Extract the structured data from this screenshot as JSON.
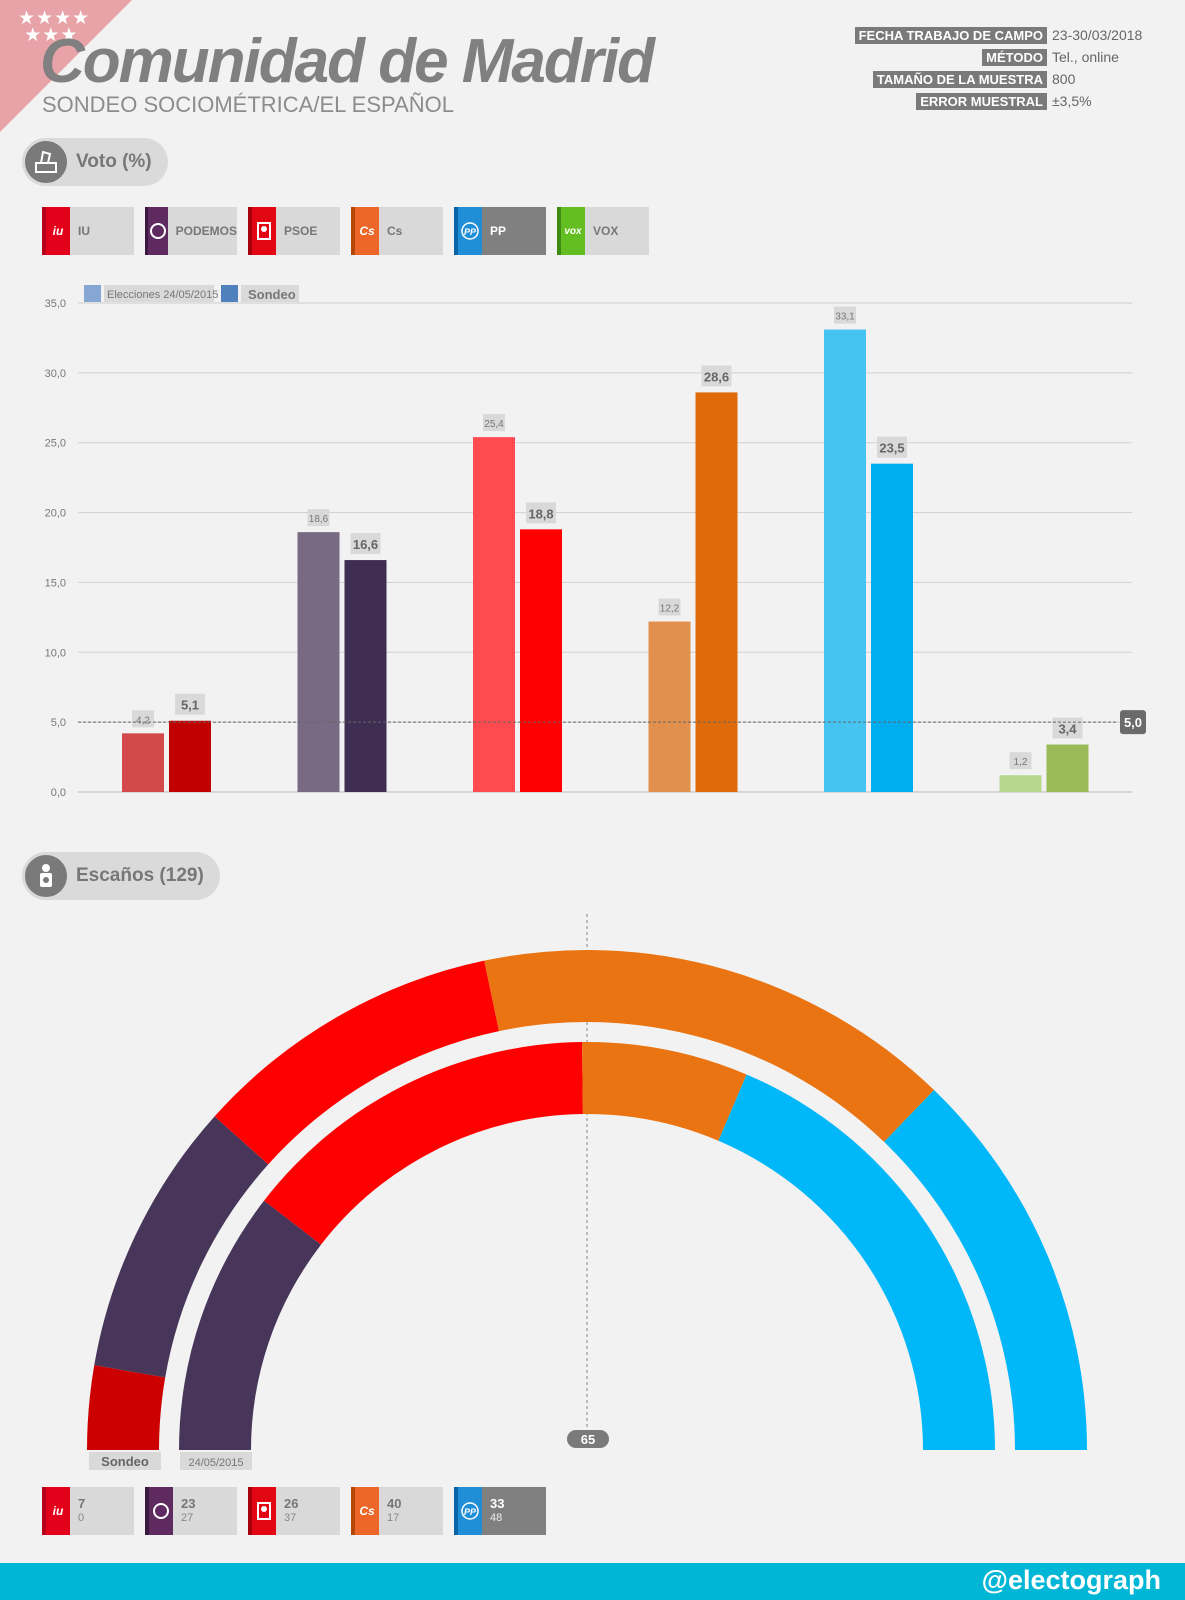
{
  "header": {
    "stars": "★★★★\n ★★★",
    "title": "Comunidad de Madrid",
    "subtitle": "SONDEO SOCIOMÉTRICA/EL ESPAÑOL"
  },
  "meta": [
    {
      "label": "FECHA TRABAJO DE CAMPO",
      "value": "23-30/03/2018"
    },
    {
      "label": "MÉTODO",
      "value": "Tel., online"
    },
    {
      "label": "TAMAÑO DE LA MUESTRA",
      "value": "800"
    },
    {
      "label": "ERROR MUESTRAL",
      "value": "±3,5%"
    }
  ],
  "sections": {
    "vote_title": "Voto (%)",
    "seats_title": "Escaños (129)"
  },
  "parties": [
    {
      "name": "IU",
      "logo": "iu",
      "color": "#e3001b"
    },
    {
      "name": "PODEMOS",
      "logo": "○",
      "color": "#5e2a5f"
    },
    {
      "name": "PSOE",
      "logo": "PS",
      "color": "#e30613"
    },
    {
      "name": "Cs",
      "logo": "Cs",
      "color": "#ec6727"
    },
    {
      "name": "PP",
      "logo": "PP",
      "color": "#1f8ed6"
    },
    {
      "name": "VOX",
      "logo": "vox",
      "color": "#63be21"
    }
  ],
  "colors": {
    "grid": "#cfcfcf",
    "label_bg": "#d9d9d9",
    "threshold": "#666666",
    "footer": "#00b6d6"
  },
  "chart_data": [
    {
      "type": "bar",
      "title": "Voto (%)",
      "categories": [
        "IU",
        "PODEMOS",
        "PSOE",
        "Cs",
        "PP",
        "VOX"
      ],
      "series": [
        {
          "name": "Elecciones 24/05/2015",
          "values": [
            4.2,
            18.6,
            25.4,
            12.2,
            33.1,
            1.2
          ],
          "labels": [
            "4,2",
            "18,6",
            "25,4",
            "12,2",
            "33,1",
            "1,2"
          ],
          "colors": [
            "#d44a4c",
            "#786a83",
            "#ff4a4f",
            "#e1904e",
            "#45c4f2",
            "#b8d68e"
          ]
        },
        {
          "name": "Sondeo",
          "values": [
            5.1,
            16.6,
            18.8,
            28.6,
            23.5,
            3.4
          ],
          "labels": [
            "5,1",
            "16,6",
            "18,8",
            "28,6",
            "23,5",
            "3,4"
          ],
          "colors": [
            "#c00000",
            "#3f2d52",
            "#ff0000",
            "#df6a0a",
            "#00adef",
            "#9bbb59"
          ]
        }
      ],
      "legend_colors": [
        "#86a7d3",
        "#4f81bd"
      ],
      "ylim": [
        0,
        35
      ],
      "yticks": [
        0,
        5,
        10,
        15,
        20,
        25,
        30,
        35
      ],
      "ytick_labels": [
        "0,0",
        "5,0",
        "10,0",
        "15,0",
        "20,0",
        "25,0",
        "30,0",
        "35,0"
      ],
      "threshold": 5.0,
      "threshold_label": "5,0",
      "xlabel": "",
      "ylabel": ""
    },
    {
      "type": "pie",
      "title": "Escaños (129)",
      "subtype": "parliament-hemicycle",
      "total": 129,
      "majority": 65,
      "majority_label": "65",
      "rings": [
        {
          "name": "Sondeo",
          "label": "Sondeo",
          "values": [
            7,
            23,
            26,
            40,
            33
          ],
          "categories": [
            "IU",
            "PODEMOS",
            "PSOE",
            "Cs",
            "PP"
          ],
          "colors": [
            "#cc0000",
            "#47365a",
            "#ff0000",
            "#ea7411",
            "#00b8f9"
          ]
        },
        {
          "name": "24/05/2015",
          "label": "24/05/2015",
          "values": [
            0,
            27,
            37,
            17,
            48
          ],
          "categories": [
            "IU",
            "PODEMOS",
            "PSOE",
            "Cs",
            "PP"
          ],
          "colors": [
            "#cc0000",
            "#47365a",
            "#ff0000",
            "#ea7411",
            "#00b8f9"
          ]
        }
      ]
    }
  ],
  "seats": [
    {
      "party": "IU",
      "new": "7",
      "old": "0"
    },
    {
      "party": "PODEMOS",
      "new": "23",
      "old": "27"
    },
    {
      "party": "PSOE",
      "new": "26",
      "old": "37"
    },
    {
      "party": "Cs",
      "new": "40",
      "old": "17"
    },
    {
      "party": "PP",
      "new": "33",
      "old": "48"
    }
  ],
  "footer": {
    "handle": "@electograph"
  }
}
